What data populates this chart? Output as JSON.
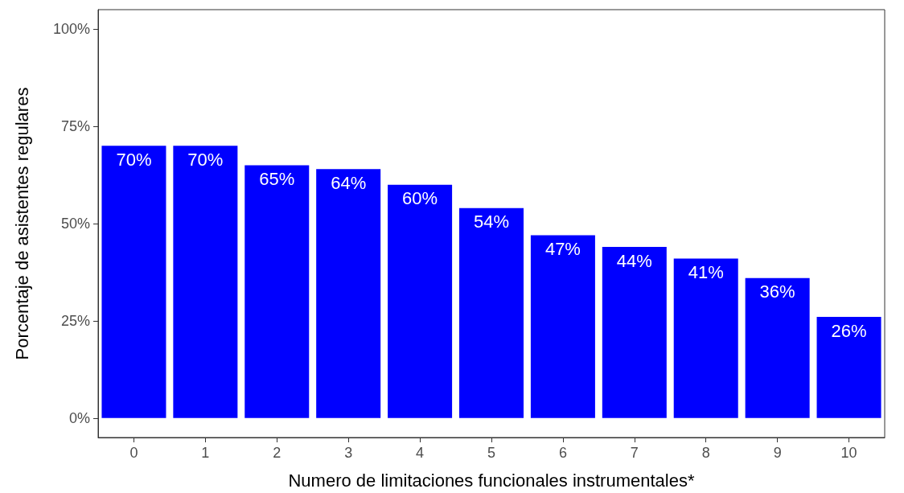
{
  "chart_data": {
    "type": "bar",
    "xlabel": "Numero de limitaciones funcionales instrumentales*",
    "ylabel": "Porcentaje de asistentes regulares",
    "categories": [
      "0",
      "1",
      "2",
      "3",
      "4",
      "5",
      "6",
      "7",
      "8",
      "9",
      "10"
    ],
    "values": [
      70,
      70,
      65,
      64,
      60,
      54,
      47,
      44,
      41,
      36,
      26
    ],
    "value_labels": [
      "70%",
      "70%",
      "65%",
      "64%",
      "60%",
      "54%",
      "47%",
      "44%",
      "41%",
      "36%",
      "26%"
    ],
    "color": "#0000ff",
    "ylim": [
      -5,
      105
    ],
    "yticks": [
      {
        "value": 0,
        "label": "0%"
      },
      {
        "value": 25,
        "label": "25%"
      },
      {
        "value": 50,
        "label": "50%"
      },
      {
        "value": 75,
        "label": "75%"
      },
      {
        "value": 100,
        "label": "100%"
      }
    ],
    "grid": false
  }
}
